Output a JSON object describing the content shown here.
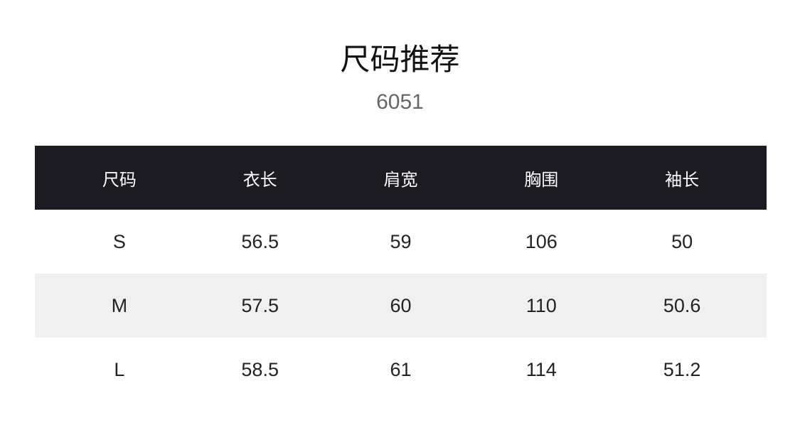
{
  "title": "尺码推荐",
  "subtitle": "6051",
  "table": {
    "headers": [
      "尺码",
      "衣长",
      "肩宽",
      "胸围",
      "袖长"
    ],
    "rows": [
      [
        "S",
        "56.5",
        "59",
        "106",
        "50"
      ],
      [
        "M",
        "57.5",
        "60",
        "110",
        "50.6"
      ],
      [
        "L",
        "58.5",
        "61",
        "114",
        "51.2"
      ]
    ]
  },
  "colors": {
    "header_bg": "#1b1b21",
    "alt_row_bg": "#f0f0f0"
  }
}
